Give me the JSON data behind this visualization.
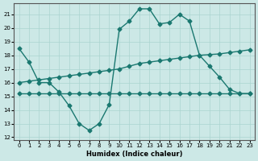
{
  "xlabel": "Humidex (Indice chaleur)",
  "bg_color": "#cce8e6",
  "line_color": "#1a7870",
  "grid_color": "#aad4d0",
  "xlim": [
    -0.5,
    23.5
  ],
  "ylim": [
    11.8,
    21.8
  ],
  "xticks": [
    0,
    1,
    2,
    3,
    4,
    5,
    6,
    7,
    8,
    9,
    10,
    11,
    12,
    13,
    14,
    15,
    16,
    17,
    18,
    19,
    20,
    21,
    22,
    23
  ],
  "yticks": [
    12,
    13,
    14,
    15,
    16,
    17,
    18,
    19,
    20,
    21
  ],
  "line1_x": [
    0,
    1,
    2,
    3,
    4,
    5,
    6,
    7,
    8,
    9,
    10,
    11,
    12,
    13,
    14,
    15,
    16,
    17,
    18,
    19,
    20,
    21,
    22,
    23
  ],
  "line1_y": [
    18.5,
    17.5,
    16.0,
    16.0,
    15.3,
    14.3,
    13.0,
    12.5,
    13.0,
    14.4,
    19.9,
    20.5,
    21.4,
    21.4,
    20.3,
    20.4,
    21.0,
    20.5,
    18.0,
    17.2,
    16.4,
    15.5,
    15.2,
    15.2
  ],
  "line2_x": [
    0,
    1,
    2,
    3,
    4,
    5,
    6,
    7,
    8,
    9,
    10,
    11,
    12,
    13,
    14,
    15,
    16,
    17,
    18,
    19,
    20,
    21,
    22,
    23
  ],
  "line2_y": [
    15.2,
    15.2,
    15.2,
    15.2,
    15.2,
    15.2,
    15.2,
    15.2,
    15.2,
    15.2,
    15.2,
    15.2,
    15.2,
    15.2,
    15.2,
    15.2,
    15.2,
    15.2,
    15.2,
    15.2,
    15.2,
    15.2,
    15.2,
    15.2
  ],
  "line3_x": [
    0,
    1,
    2,
    3,
    4,
    5,
    6,
    7,
    8,
    9,
    10,
    11,
    12,
    13,
    14,
    15,
    16,
    17,
    18,
    19,
    20,
    21,
    22,
    23
  ],
  "line3_y": [
    16.0,
    16.1,
    16.2,
    16.3,
    16.4,
    16.5,
    16.6,
    16.7,
    16.8,
    16.9,
    17.0,
    17.2,
    17.4,
    17.5,
    17.6,
    17.7,
    17.8,
    17.9,
    18.0,
    18.05,
    18.1,
    18.2,
    18.3,
    18.4
  ],
  "markersize": 2.5,
  "linewidth": 1.0
}
